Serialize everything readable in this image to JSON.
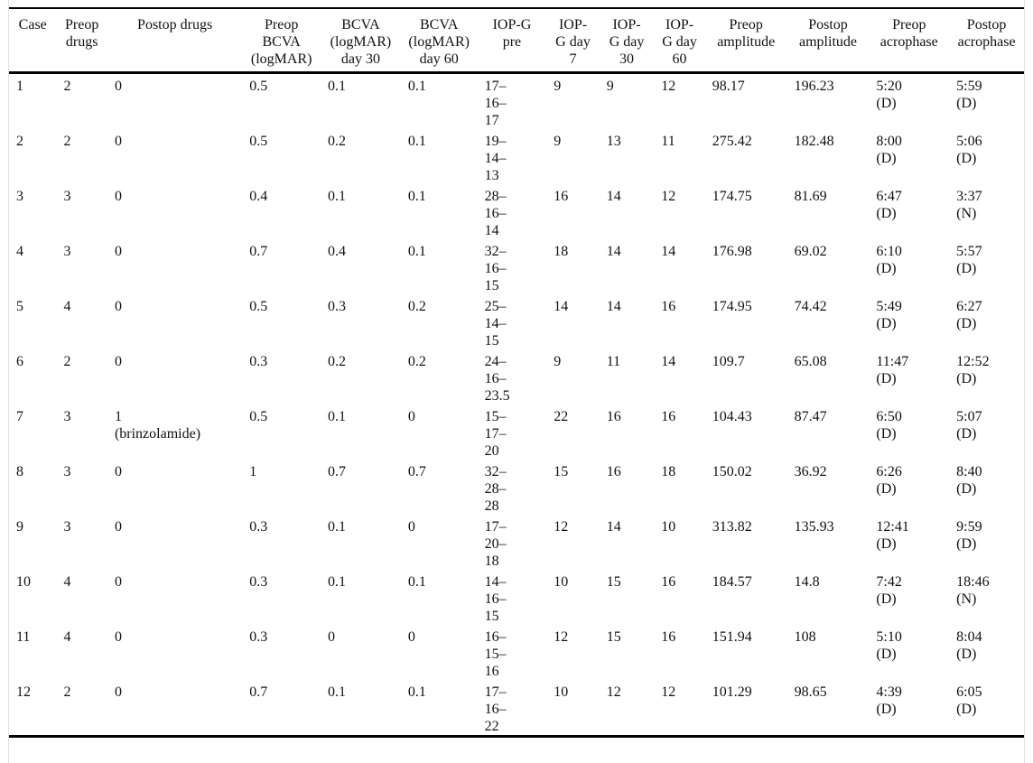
{
  "table": {
    "columns": [
      "Case",
      "Preop\ndrugs",
      "Postop drugs",
      "Preop\nBCVA\n(logMAR)",
      "BCVA\n(logMAR)\nday 30",
      "BCVA\n(logMAR)\nday 60",
      "IOP-G\npre",
      "IOP-\nG day\n7",
      "IOP-\nG day\n30",
      "IOP-\nG day\n60",
      "Preop\namplitude",
      "Postop\namplitude",
      "Preop\nacrophase",
      "Postop\nacrophase"
    ],
    "rows": [
      [
        "1",
        "2",
        "0",
        "0.5",
        "0.1",
        "0.1",
        "17–\n16–\n17",
        "9",
        "9",
        "12",
        "98.17",
        "196.23",
        "5:20\n(D)",
        "5:59\n(D)"
      ],
      [
        "2",
        "2",
        "0",
        "0.5",
        "0.2",
        "0.1",
        "19–\n14–\n13",
        "9",
        "13",
        "11",
        "275.42",
        "182.48",
        "8:00\n(D)",
        "5:06\n(D)"
      ],
      [
        "3",
        "3",
        "0",
        "0.4",
        "0.1",
        "0.1",
        "28–\n16–\n14",
        "16",
        "14",
        "12",
        "174.75",
        "81.69",
        "6:47\n(D)",
        "3:37\n(N)"
      ],
      [
        "4",
        "3",
        "0",
        "0.7",
        "0.4",
        "0.1",
        "32–\n16–\n15",
        "18",
        "14",
        "14",
        "176.98",
        "69.02",
        "6:10\n(D)",
        "5:57\n(D)"
      ],
      [
        "5",
        "4",
        "0",
        "0.5",
        "0.3",
        "0.2",
        "25–\n14–\n15",
        "14",
        "14",
        "16",
        "174.95",
        "74.42",
        "5:49\n(D)",
        "6:27\n(D)"
      ],
      [
        "6",
        "2",
        "0",
        "0.3",
        "0.2",
        "0.2",
        "24–\n16–\n23.5",
        "9",
        "11",
        "14",
        "109.7",
        "65.08",
        "11:47\n(D)",
        "12:52\n(D)"
      ],
      [
        "7",
        "3",
        "1\n(brinzolamide)",
        "0.5",
        "0.1",
        "0",
        "15–\n17–\n20",
        "22",
        "16",
        "16",
        "104.43",
        "87.47",
        "6:50\n(D)",
        "5:07\n(D)"
      ],
      [
        "8",
        "3",
        "0",
        "1",
        "0.7",
        "0.7",
        "32–\n28–\n28",
        "15",
        "16",
        "18",
        "150.02",
        "36.92",
        "6:26\n(D)",
        "8:40\n(D)"
      ],
      [
        "9",
        "3",
        "0",
        "0.3",
        "0.1",
        "0",
        "17–\n20–\n18",
        "12",
        "14",
        "10",
        "313.82",
        "135.93",
        "12:41\n(D)",
        "9:59\n(D)"
      ],
      [
        "10",
        "4",
        "0",
        "0.3",
        "0.1",
        "0.1",
        "14–\n16–\n15",
        "10",
        "15",
        "16",
        "184.57",
        "14.8",
        "7:42\n(D)",
        "18:46\n(N)"
      ],
      [
        "11",
        "4",
        "0",
        "0.3",
        "0",
        "0",
        "16–\n15–\n16",
        "12",
        "15",
        "16",
        "151.94",
        "108",
        "5:10\n(D)",
        "8:04\n(D)"
      ],
      [
        "12",
        "2",
        "0",
        "0.7",
        "0.1",
        "0.1",
        "17–\n16–\n22",
        "10",
        "12",
        "12",
        "101.29",
        "98.65",
        "4:39\n(D)",
        "6:05\n(D)"
      ]
    ],
    "colors": {
      "rule": "#000000",
      "text": "#111111",
      "frame_edge": "#e0e0e0",
      "background": "#ffffff"
    }
  }
}
